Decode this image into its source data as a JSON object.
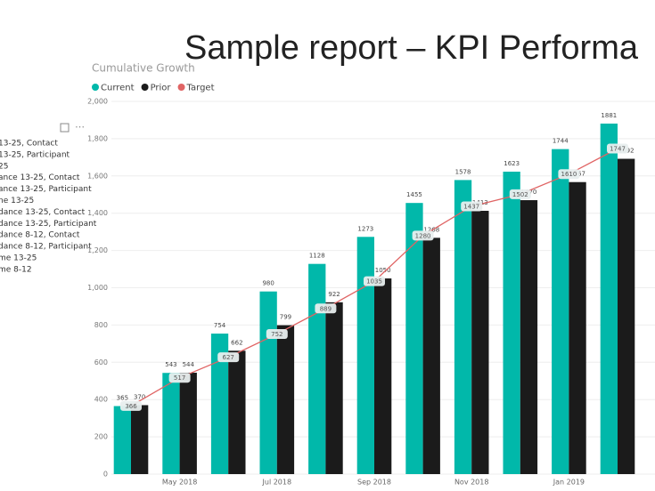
{
  "header": {
    "title": "Sample report – KPI Performa"
  },
  "panel": {
    "items": [
      "13-25, Contact",
      "13-25, Participant",
      "25",
      "ance 13-25, Contact",
      "ance 13-25, Participant",
      "ne 13-25",
      "dance 13-25, Contact",
      "dance 13-25, Participant",
      "dance 8-12, Contact",
      "dance 8-12, Participant",
      "me 13-25",
      "me 8-12"
    ]
  },
  "chart_data": {
    "type": "bar-line",
    "title": "Cumulative Growth",
    "categories": [
      null,
      "May 2018",
      null,
      "Jul 2018",
      null,
      "Sep 2018",
      null,
      "Nov 2018",
      null,
      "Jan 2019",
      null
    ],
    "series": [
      {
        "name": "Current",
        "color": "#01b8aa",
        "kind": "bar",
        "values": [
          365,
          543,
          754,
          980,
          1128,
          1273,
          1455,
          1578,
          1623,
          1744,
          1881
        ]
      },
      {
        "name": "Prior",
        "color": "#1b1b1b",
        "kind": "bar",
        "values": [
          370,
          544,
          662,
          799,
          922,
          1050,
          1268,
          1413,
          1470,
          1567,
          1692
        ]
      },
      {
        "name": "Target",
        "color": "#e06464",
        "kind": "line",
        "values": [
          366,
          517,
          627,
          752,
          889,
          1035,
          1280,
          1437,
          1502,
          1610,
          1747
        ]
      }
    ],
    "ylim": [
      0,
      2000
    ],
    "yticks": [
      0,
      200,
      400,
      600,
      800,
      {
        "value": 1000,
        "label": "1,000"
      },
      {
        "value": 1200,
        "label": "1,200"
      },
      {
        "value": 1400,
        "label": "1,400"
      },
      {
        "value": 1600,
        "label": "1,600"
      },
      {
        "value": 1800,
        "label": "1,800"
      },
      {
        "value": 2000,
        "label": "2,000"
      }
    ],
    "grid": true,
    "legend": "top-left"
  }
}
